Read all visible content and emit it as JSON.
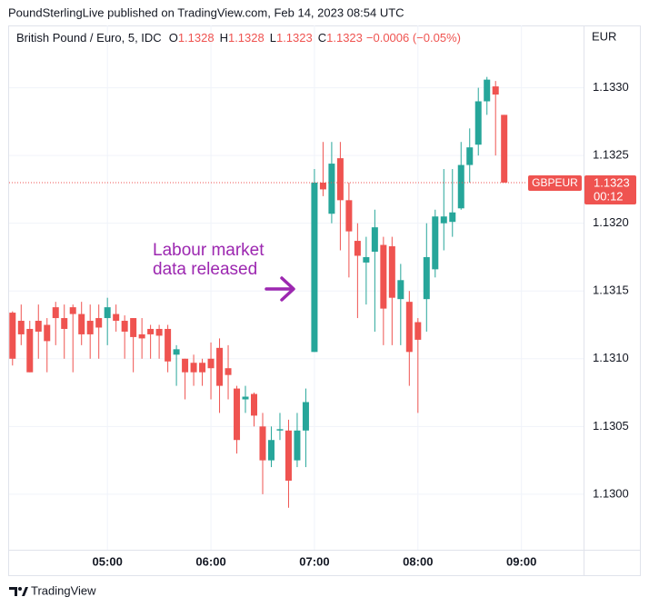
{
  "header": "PoundSterlingLive published on TradingView.com, Feb 14, 2023 08:54 UTC",
  "footer": "TradingView",
  "chart_data": {
    "type": "candlestick",
    "title": "British Pound / Euro, 5, IDC",
    "ohlc_labels": [
      "O",
      "H",
      "L",
      "C"
    ],
    "change": "−0.0006 (−0.05%)",
    "currency": "EUR",
    "symbol": "GBPEUR",
    "countdown": "00:12",
    "annotation": [
      "Labour market",
      "data released"
    ],
    "annotation_color": "#9c27b0",
    "up_color": "#26a69a",
    "down_color": "#ef5350",
    "grid": true,
    "x": [
      "04:05",
      "04:10",
      "04:15",
      "04:20",
      "04:25",
      "04:30",
      "04:35",
      "04:40",
      "04:45",
      "04:50",
      "04:55",
      "05:00",
      "05:05",
      "05:10",
      "05:15",
      "05:20",
      "05:25",
      "05:30",
      "05:35",
      "05:40",
      "05:45",
      "05:50",
      "05:55",
      "06:00",
      "06:05",
      "06:10",
      "06:15",
      "06:20",
      "06:25",
      "06:30",
      "06:35",
      "06:40",
      "06:45",
      "06:50",
      "06:55",
      "07:00",
      "07:05",
      "07:10",
      "07:15",
      "07:20",
      "07:25",
      "07:30",
      "07:35",
      "07:40",
      "07:45",
      "07:50",
      "07:55",
      "08:00",
      "08:05",
      "08:10",
      "08:15",
      "08:20",
      "08:25",
      "08:30",
      "08:35",
      "08:40",
      "08:45",
      "08:50"
    ],
    "open": [
      1.13134,
      1.13128,
      1.13122,
      1.13128,
      1.13125,
      1.13138,
      1.1313,
      1.13138,
      1.13133,
      1.13128,
      1.1313,
      1.1313,
      1.13133,
      1.13128,
      1.1313,
      1.13118,
      1.13122,
      1.13122,
      1.13122,
      1.13103,
      1.131,
      1.13097,
      1.13097,
      1.131,
      1.13108,
      1.13093,
      1.13078,
      1.1307,
      1.13074,
      1.1305,
      1.13025,
      1.13047,
      1.13047,
      1.13025,
      1.13047,
      1.13105,
      1.1323,
      1.13207,
      1.13248,
      1.13217,
      1.13187,
      1.13171,
      1.13179,
      1.13184,
      1.13183,
      1.13144,
      1.13142,
      1.13127,
      1.13144,
      1.13166,
      1.132,
      1.13201,
      1.13211,
      1.13243,
      1.13258,
      1.1329,
      1.13301,
      1.1328
    ],
    "high": [
      1.13135,
      1.1314,
      1.13128,
      1.1314,
      1.1313,
      1.13142,
      1.1314,
      1.1314,
      1.13142,
      1.1314,
      1.1314,
      1.13145,
      1.1314,
      1.13132,
      1.1313,
      1.1313,
      1.13125,
      1.13125,
      1.13125,
      1.1311,
      1.131,
      1.13103,
      1.131,
      1.13112,
      1.13115,
      1.1311,
      1.1308,
      1.1308,
      1.13075,
      1.1306,
      1.1305,
      1.1306,
      1.13055,
      1.1306,
      1.13078,
      1.1324,
      1.1326,
      1.1326,
      1.1326,
      1.1323,
      1.132,
      1.1319,
      1.1321,
      1.1319,
      1.1319,
      1.1317,
      1.1315,
      1.1313,
      1.132,
      1.1321,
      1.1324,
      1.1324,
      1.1326,
      1.1327,
      1.133,
      1.13308,
      1.13305,
      1.1328
    ],
    "low": [
      1.13095,
      1.1311,
      1.1309,
      1.131,
      1.1309,
      1.1311,
      1.131,
      1.1309,
      1.1311,
      1.131,
      1.131,
      1.1311,
      1.1312,
      1.131,
      1.1309,
      1.131,
      1.131,
      1.131,
      1.1309,
      1.1308,
      1.1307,
      1.1308,
      1.1308,
      1.1307,
      1.1306,
      1.1307,
      1.1303,
      1.1306,
      1.1305,
      1.13,
      1.1302,
      1.1304,
      1.1299,
      1.1302,
      1.1302,
      1.13105,
      1.1322,
      1.132,
      1.1318,
      1.1316,
      1.1313,
      1.1314,
      1.1312,
      1.1311,
      1.1311,
      1.1311,
      1.1308,
      1.1306,
      1.1312,
      1.1316,
      1.1318,
      1.1319,
      1.1321,
      1.1323,
      1.1325,
      1.1328,
      1.1325,
      1.1323
    ],
    "close": [
      1.131,
      1.13118,
      1.1309,
      1.1312,
      1.13113,
      1.1313,
      1.13122,
      1.13133,
      1.13118,
      1.13118,
      1.13123,
      1.13138,
      1.13128,
      1.1312,
      1.13116,
      1.13115,
      1.13118,
      1.13117,
      1.13098,
      1.13107,
      1.1309,
      1.1309,
      1.1309,
      1.13093,
      1.1308,
      1.13088,
      1.1304,
      1.13072,
      1.13058,
      1.13025,
      1.1304,
      1.13048,
      1.1301,
      1.13047,
      1.13068,
      1.1323,
      1.13225,
      1.13244,
      1.13217,
      1.13194,
      1.13176,
      1.13175,
      1.13197,
      1.13137,
      1.13145,
      1.13158,
      1.13105,
      1.13114,
      1.13175,
      1.13205,
      1.13205,
      1.13208,
      1.13243,
      1.13256,
      1.1329,
      1.13306,
      1.13295,
      1.1323
    ],
    "xlim": [
      "04:03",
      "09:36"
    ],
    "xticks": [
      "05:00",
      "06:00",
      "07:00",
      "08:00",
      "09:00"
    ],
    "ylim": [
      1.12959,
      1.13346
    ],
    "yticks": [
      {
        "value": 1.13,
        "label": "1.1300"
      },
      1.1305,
      {
        "value": 1.131,
        "label": "1.1310"
      },
      1.1315,
      {
        "value": 1.132,
        "label": "1.1320"
      },
      1.1325,
      {
        "value": 1.133,
        "label": "1.1330"
      }
    ]
  }
}
